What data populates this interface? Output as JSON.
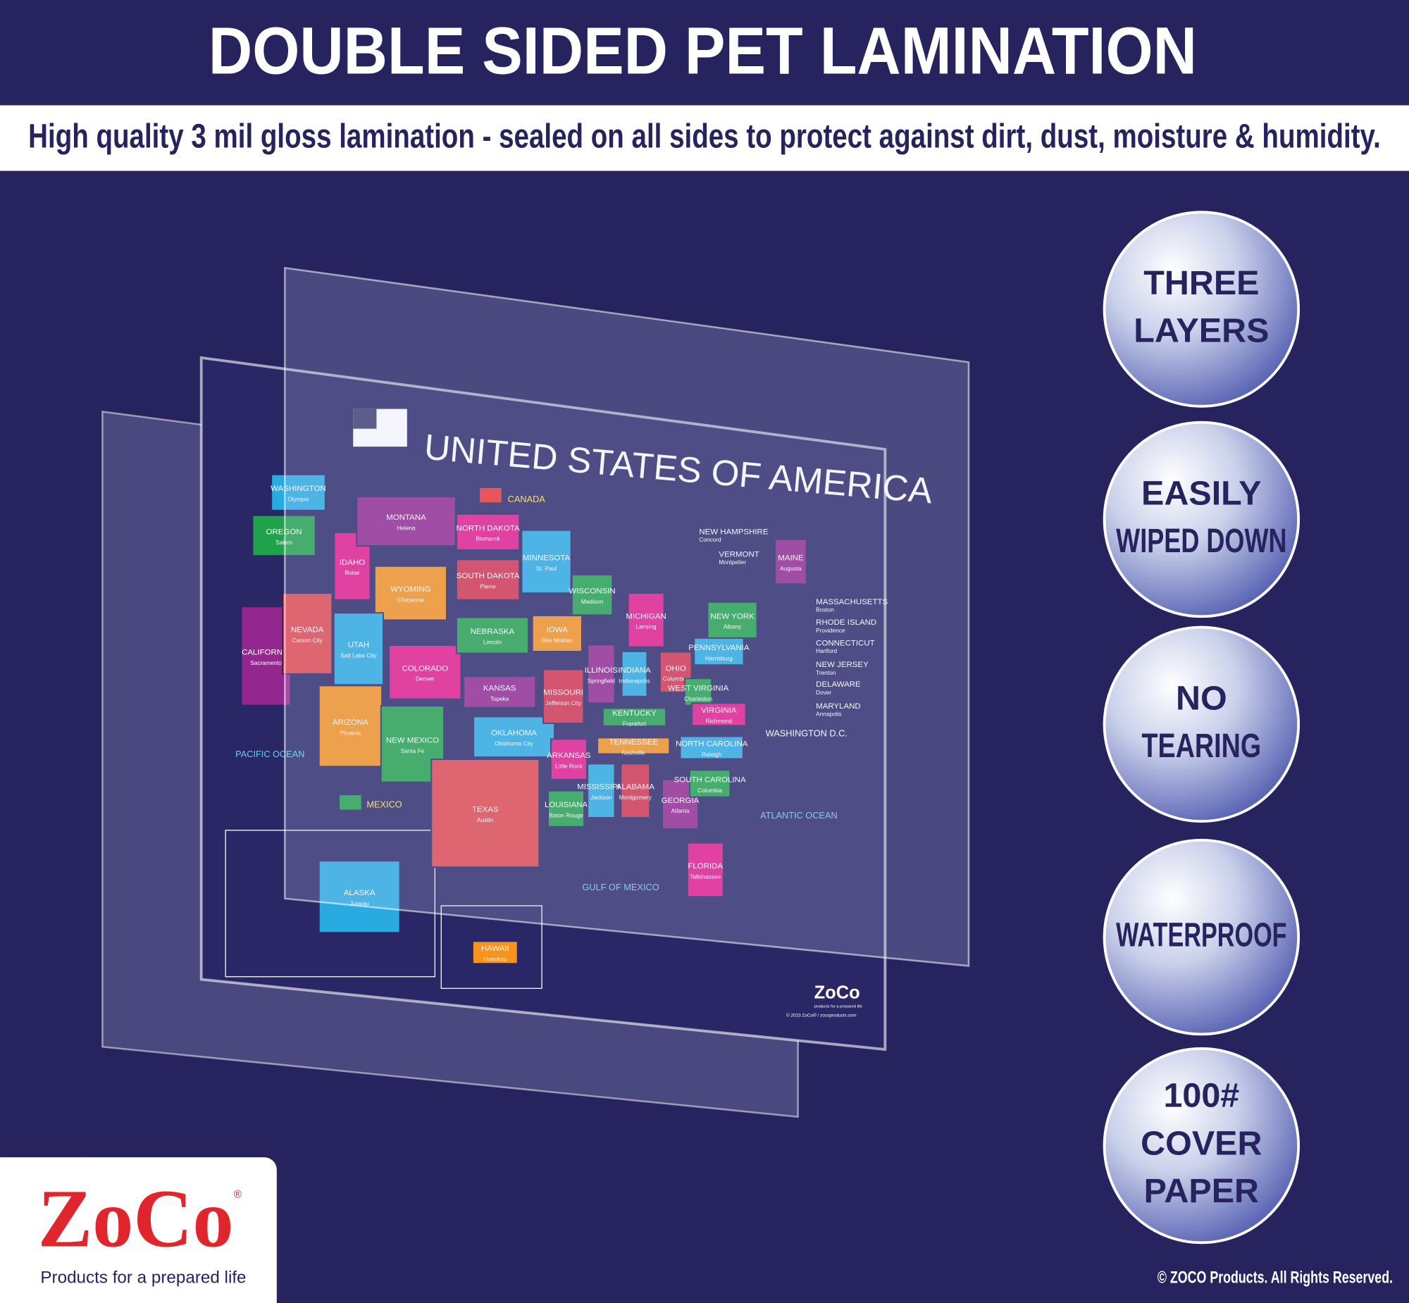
{
  "header": {
    "title": "DOUBLE SIDED PET LAMINATION",
    "subtitle": "High quality 3 mil gloss lamination - sealed on all sides to protect against dirt, dust, moisture & humidity."
  },
  "features": [
    [
      "THREE",
      "LAYERS"
    ],
    [
      "EASILY",
      "WIPED DOWN"
    ],
    [
      "NO",
      "TEARING"
    ],
    [
      "WATERPROOF"
    ],
    [
      "100#",
      "COVER",
      "PAPER"
    ]
  ],
  "map": {
    "title": "UNITED STATES OF AMERICA",
    "canada": "CANADA",
    "mexico": "MEXICO",
    "pacific": "PACIFIC OCEAN",
    "atlantic": "ATLANTIC OCEAN",
    "gulf": "GULF OF MEXICO",
    "dc": "WASHINGTON D.C.",
    "brand": "ZoCo",
    "brand_tagline": "products for a prepared life",
    "brand_copyright": "© 2023 ZoCo® / zocoproducts.com",
    "states": [
      {
        "name": "WASHINGTON",
        "capital": "Olympia",
        "color": "#29abe2"
      },
      {
        "name": "OREGON",
        "capital": "Salem",
        "color": "#1fa24a"
      },
      {
        "name": "CALIFORNIA",
        "capital": "Sacramento",
        "color": "#93278f"
      },
      {
        "name": "IDAHO",
        "capital": "Boise",
        "color": "#e6198a"
      },
      {
        "name": "NEVADA",
        "capital": "Carson City",
        "color": "#e0474c"
      },
      {
        "name": "MONTANA",
        "capital": "Helena",
        "color": "#93278f"
      },
      {
        "name": "WYOMING",
        "capital": "Cheyenne",
        "color": "#f7931e"
      },
      {
        "name": "UTAH",
        "capital": "Salt Lake City",
        "color": "#29abe2"
      },
      {
        "name": "COLORADO",
        "capital": "Denver",
        "color": "#e6198a"
      },
      {
        "name": "ARIZONA",
        "capital": "Phoenix",
        "color": "#f7931e"
      },
      {
        "name": "NEW MEXICO",
        "capital": "Santa Fe",
        "color": "#1fa24a"
      },
      {
        "name": "NORTH DAKOTA",
        "capital": "Bismarck",
        "color": "#e6198a"
      },
      {
        "name": "SOUTH DAKOTA",
        "capital": "Pierre",
        "color": "#d4314a"
      },
      {
        "name": "NEBRASKA",
        "capital": "Lincoln",
        "color": "#1fa24a"
      },
      {
        "name": "KANSAS",
        "capital": "Topeka",
        "color": "#93278f"
      },
      {
        "name": "OKLAHOMA",
        "capital": "Oklahoma City",
        "color": "#29abe2"
      },
      {
        "name": "TEXAS",
        "capital": "Austin",
        "color": "#e0474c"
      },
      {
        "name": "MINNESOTA",
        "capital": "St. Paul",
        "color": "#29abe2"
      },
      {
        "name": "IOWA",
        "capital": "Des Moines",
        "color": "#f7931e"
      },
      {
        "name": "MISSOURI",
        "capital": "Jefferson City",
        "color": "#d4314a"
      },
      {
        "name": "ARKANSAS",
        "capital": "Little Rock",
        "color": "#e6198a"
      },
      {
        "name": "LOUISIANA",
        "capital": "Baton Rouge",
        "color": "#1fa24a"
      },
      {
        "name": "WISCONSIN",
        "capital": "Madison",
        "color": "#1fa24a"
      },
      {
        "name": "ILLINOIS",
        "capital": "Springfield",
        "color": "#93278f"
      },
      {
        "name": "MISSISSIPPI",
        "capital": "Jackson",
        "color": "#29abe2"
      },
      {
        "name": "MICHIGAN",
        "capital": "Lansing",
        "color": "#e6198a"
      },
      {
        "name": "INDIANA",
        "capital": "Indianapolis",
        "color": "#29abe2"
      },
      {
        "name": "KENTUCKY",
        "capital": "Frankfort",
        "color": "#1fa24a"
      },
      {
        "name": "TENNESSEE",
        "capital": "Nashville",
        "color": "#f7931e"
      },
      {
        "name": "ALABAMA",
        "capital": "Montgomery",
        "color": "#d4314a"
      },
      {
        "name": "OHIO",
        "capital": "Columbus",
        "color": "#d4314a"
      },
      {
        "name": "GEORGIA",
        "capital": "Atlanta",
        "color": "#93278f"
      },
      {
        "name": "FLORIDA",
        "capital": "Tallahassee",
        "color": "#e6198a"
      },
      {
        "name": "WEST VIRGINIA",
        "capital": "Charleston",
        "color": "#1fa24a"
      },
      {
        "name": "VIRGINIA",
        "capital": "Richmond",
        "color": "#e6198a"
      },
      {
        "name": "NORTH CAROLINA",
        "capital": "Raleigh",
        "color": "#29abe2"
      },
      {
        "name": "SOUTH CAROLINA",
        "capital": "Columbia",
        "color": "#1fa24a"
      },
      {
        "name": "PENNSYLVANIA",
        "capital": "Harrisburg",
        "color": "#29abe2"
      },
      {
        "name": "NEW YORK",
        "capital": "Albany",
        "color": "#1fa24a"
      },
      {
        "name": "MAINE",
        "capital": "Augusta",
        "color": "#93278f"
      },
      {
        "name": "ALASKA",
        "capital": "Juneau",
        "color": "#29abe2"
      },
      {
        "name": "HAWAII",
        "capital": "Honolulu",
        "color": "#f7931e"
      }
    ],
    "northeast": [
      {
        "name": "NEW HAMPSHIRE",
        "capital": "Concord"
      },
      {
        "name": "VERMONT",
        "capital": "Montpelier"
      },
      {
        "name": "MASSACHUSETTS",
        "capital": "Boston"
      },
      {
        "name": "RHODE ISLAND",
        "capital": "Providence"
      },
      {
        "name": "CONNECTICUT",
        "capital": "Hartford"
      },
      {
        "name": "NEW JERSEY",
        "capital": "Trenton"
      },
      {
        "name": "DELAWARE",
        "capital": "Dover"
      },
      {
        "name": "MARYLAND",
        "capital": "Annapolis"
      }
    ]
  },
  "logo": {
    "brand": "ZoCo",
    "registered": "®",
    "tagline": "Products for a prepared life"
  },
  "copyright": "© ZOCO Products. All Rights Reserved."
}
